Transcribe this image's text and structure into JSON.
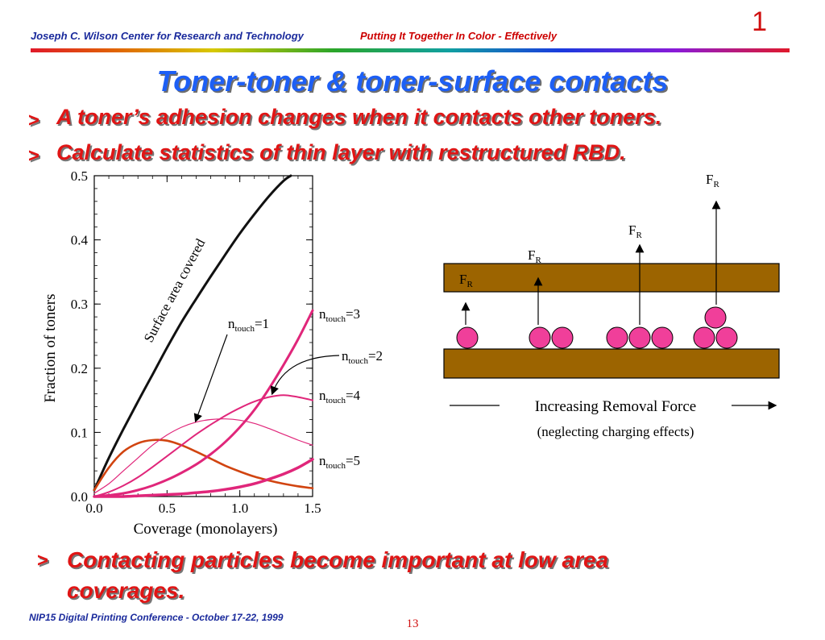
{
  "header": {
    "left": "Joseph C. Wilson Center for Research and Technology",
    "right": "Putting It Together In Color - Effectively",
    "slide_number": "1"
  },
  "colors": {
    "title": "#1d5ff5",
    "accent": "#e01515",
    "brand": "#1a2a9c",
    "curve_pink": "#e0267a",
    "curve_orange": "#d14410",
    "plate": "#9c6400",
    "particle": "#f03f9a"
  },
  "title": "Toner-toner & toner-surface contacts",
  "bullets": [
    {
      "mark": ">",
      "text": "A toner’s adhesion changes when it contacts other toners."
    },
    {
      "mark": ">",
      "text": "Calculate statistics of thin layer with restructured RBD."
    }
  ],
  "bottom_bullet": {
    "mark": ">",
    "text": "Contacting particles become important at low area coverages."
  },
  "footer": {
    "conference": "NIP15 Digital Printing Conference - October 17-22, 1999",
    "page": "13"
  },
  "chart_data": {
    "type": "line",
    "xlabel": "Coverage (monolayers)",
    "ylabel": "Fraction of toners",
    "xlim": [
      0,
      1.5
    ],
    "ylim": [
      0,
      0.5
    ],
    "x_ticks": [
      "0.0",
      "0.5",
      "1.0",
      "1.5"
    ],
    "y_ticks": [
      "0.0",
      "0.1",
      "0.2",
      "0.3",
      "0.4",
      "0.5"
    ],
    "grid": false,
    "series": [
      {
        "name": "Surface area covered",
        "color": "#111111",
        "width": 3,
        "x": [
          0,
          0.1,
          0.2,
          0.3,
          0.4,
          0.5,
          0.6,
          0.7,
          0.8,
          0.9,
          1.0,
          1.1,
          1.2,
          1.3,
          1.35
        ],
        "y": [
          0.01,
          0.06,
          0.105,
          0.148,
          0.19,
          0.232,
          0.272,
          0.308,
          0.343,
          0.377,
          0.41,
          0.44,
          0.468,
          0.492,
          0.5
        ]
      },
      {
        "name_prefix": "n",
        "name_sub": "touch",
        "name_suffix": "=1",
        "color": "#d14410",
        "width": 2.6,
        "x": [
          0,
          0.1,
          0.2,
          0.3,
          0.4,
          0.5,
          0.6,
          0.7,
          0.8,
          0.9,
          1.0,
          1.1,
          1.2,
          1.3,
          1.4,
          1.5
        ],
        "y": [
          0.01,
          0.045,
          0.07,
          0.083,
          0.088,
          0.087,
          0.08,
          0.07,
          0.059,
          0.048,
          0.039,
          0.031,
          0.025,
          0.02,
          0.016,
          0.013
        ]
      },
      {
        "name_prefix": "n",
        "name_sub": "touch",
        "name_suffix": "=2",
        "color": "#e0267a",
        "width": 1.2,
        "x": [
          0,
          0.1,
          0.2,
          0.3,
          0.4,
          0.5,
          0.6,
          0.7,
          0.8,
          0.9,
          1.0,
          1.1,
          1.2,
          1.3,
          1.4,
          1.5
        ],
        "y": [
          0.005,
          0.02,
          0.04,
          0.06,
          0.08,
          0.096,
          0.108,
          0.116,
          0.12,
          0.121,
          0.119,
          0.114,
          0.106,
          0.097,
          0.088,
          0.08
        ]
      },
      {
        "name_prefix": "n",
        "name_sub": "touch",
        "name_suffix": "=3",
        "color": "#e0267a",
        "width": 3,
        "x": [
          0,
          0.1,
          0.2,
          0.3,
          0.4,
          0.5,
          0.6,
          0.7,
          0.8,
          0.9,
          1.0,
          1.1,
          1.2,
          1.3,
          1.4,
          1.5
        ],
        "y": [
          0,
          0.002,
          0.005,
          0.01,
          0.017,
          0.026,
          0.037,
          0.05,
          0.066,
          0.085,
          0.108,
          0.135,
          0.168,
          0.205,
          0.245,
          0.29
        ]
      },
      {
        "name_prefix": "n",
        "name_sub": "touch",
        "name_suffix": "=4",
        "color": "#e0267a",
        "width": 2,
        "x": [
          0,
          0.1,
          0.2,
          0.3,
          0.4,
          0.5,
          0.6,
          0.7,
          0.8,
          0.9,
          1.0,
          1.1,
          1.2,
          1.3,
          1.4,
          1.5
        ],
        "y": [
          0,
          0.007,
          0.017,
          0.03,
          0.046,
          0.063,
          0.08,
          0.097,
          0.112,
          0.126,
          0.138,
          0.148,
          0.155,
          0.158,
          0.155,
          0.15
        ]
      },
      {
        "name_prefix": "n",
        "name_sub": "touch",
        "name_suffix": "=5",
        "color": "#e0267a",
        "width": 3.5,
        "x": [
          0,
          0.1,
          0.2,
          0.3,
          0.4,
          0.5,
          0.6,
          0.7,
          0.8,
          0.9,
          1.0,
          1.1,
          1.2,
          1.3,
          1.4,
          1.5
        ],
        "y": [
          0,
          0,
          0,
          0.001,
          0.002,
          0.003,
          0.004,
          0.006,
          0.008,
          0.011,
          0.015,
          0.02,
          0.027,
          0.035,
          0.045,
          0.058
        ]
      }
    ]
  },
  "diagram": {
    "force_label_main": "F",
    "force_label_sub": "R",
    "caption": "Increasing Removal Force",
    "subcaption": "(neglecting charging effects)"
  }
}
